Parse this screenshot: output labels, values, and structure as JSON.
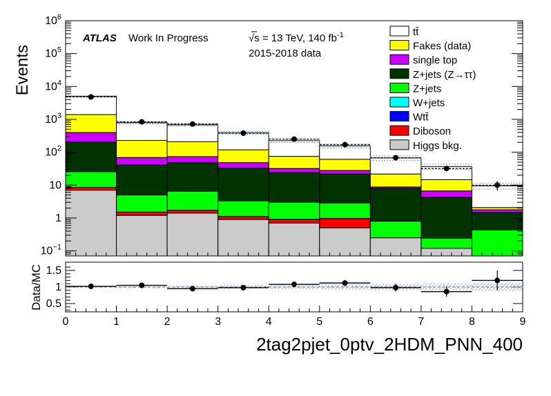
{
  "annotations": {
    "atlas": "ATLAS",
    "status": "Work In Progress",
    "energy": "√s = 13 TeV, 140 fb",
    "energy_sup": "-1",
    "data_period": "2015-2018 data"
  },
  "chart_data": {
    "type": "bar",
    "stacked": true,
    "xlabel": "2tag2pjet_0ptv_2HDM_PNN_400",
    "ylabel": "Events",
    "ratio_ylabel": "Data/MC",
    "xlim": [
      0,
      9
    ],
    "ylim": [
      0.07,
      1000000
    ],
    "ylog": true,
    "ratio_ylim": [
      0.25,
      1.75
    ],
    "x_ticks": [
      "0",
      "1",
      "2",
      "3",
      "4",
      "5",
      "6",
      "7",
      "8",
      "9"
    ],
    "y_ticks": [
      {
        "value": 0.1,
        "base": "10",
        "exp": "−1"
      },
      {
        "value": 1,
        "base": "1",
        "exp": ""
      },
      {
        "value": 10,
        "base": "10",
        "exp": ""
      },
      {
        "value": 100,
        "base": "10",
        "exp": "2"
      },
      {
        "value": 1000,
        "base": "10",
        "exp": "3"
      },
      {
        "value": 10000,
        "base": "10",
        "exp": "4"
      },
      {
        "value": 100000,
        "base": "10",
        "exp": "5"
      },
      {
        "value": 1000000,
        "base": "10",
        "exp": "6"
      }
    ],
    "ratio_ticks": [
      "0.5",
      "1",
      "1.5"
    ],
    "bin_edges": [
      0,
      1,
      2,
      3,
      4,
      5,
      6,
      7,
      8,
      9
    ],
    "series": [
      {
        "name": "Higgs bkg.",
        "color": "#cbcbcb",
        "values": [
          7,
          1.2,
          1.4,
          0.9,
          0.7,
          0.5,
          0.25,
          0.12,
          0.06
        ]
      },
      {
        "name": "Diboson",
        "color": "#ff0000",
        "values": [
          1.5,
          0.3,
          0.3,
          0.2,
          0.2,
          0.45,
          0.0,
          0.0,
          0.0
        ]
      },
      {
        "name": "Wtt̄",
        "color": "#0000ff",
        "values": [
          0.02,
          0.01,
          0.01,
          0.01,
          0.01,
          0.01,
          0.0,
          0.0,
          0.0
        ]
      },
      {
        "name": "W+jets",
        "color": "#00ffff",
        "values": [
          0.05,
          0.01,
          0.01,
          0.01,
          0.01,
          0.01,
          0.0,
          0.0,
          0.0
        ]
      },
      {
        "name": "Z+jets",
        "color": "#00ff00",
        "values": [
          17,
          3.5,
          4.8,
          2.2,
          2.1,
          1.9,
          0.55,
          0.12,
          0.37
        ]
      },
      {
        "name": "Z+jets (Z→ττ)",
        "color": "#003300",
        "values": [
          180,
          36,
          42,
          30,
          21,
          19,
          7.2,
          4.0,
          1.05
        ]
      },
      {
        "name": "single top",
        "color": "#cc00ff",
        "values": [
          190,
          28,
          25,
          15,
          8,
          6,
          0.8,
          2.4,
          0.3
        ]
      },
      {
        "name": "Fakes (data)",
        "color": "#ffff00",
        "values": [
          1000,
          160,
          135,
          70,
          43,
          33,
          13,
          8,
          0.3
        ]
      },
      {
        "name": "tt̄",
        "color": "#ffffff",
        "values": [
          3600,
          560,
          470,
          270,
          150,
          95,
          45,
          22,
          7.4
        ]
      }
    ],
    "data": {
      "name": "Data",
      "values": [
        4800,
        840,
        720,
        380,
        250,
        170,
        68,
        32,
        10
      ],
      "errors": [
        70,
        29,
        27,
        20,
        16,
        13,
        8,
        5.7,
        3.2
      ]
    },
    "ratio": {
      "values": [
        1.02,
        1.05,
        0.95,
        0.98,
        1.08,
        1.12,
        0.98,
        0.86,
        1.2
      ],
      "errors": [
        0.02,
        0.04,
        0.04,
        0.05,
        0.07,
        0.09,
        0.12,
        0.15,
        0.3
      ]
    }
  }
}
